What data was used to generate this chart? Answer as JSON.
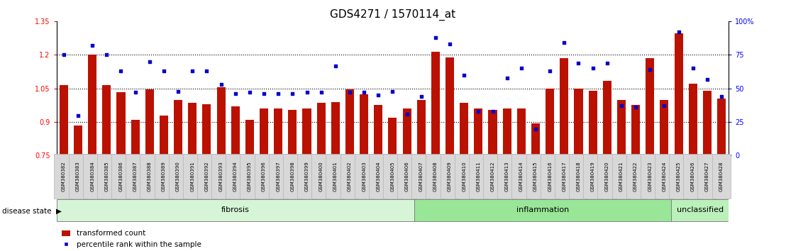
{
  "title": "GDS4271 / 1570114_at",
  "samples": [
    "GSM380382",
    "GSM380383",
    "GSM380384",
    "GSM380385",
    "GSM380386",
    "GSM380387",
    "GSM380388",
    "GSM380389",
    "GSM380390",
    "GSM380391",
    "GSM380392",
    "GSM380393",
    "GSM380394",
    "GSM380395",
    "GSM380396",
    "GSM380397",
    "GSM380398",
    "GSM380399",
    "GSM380400",
    "GSM380401",
    "GSM380402",
    "GSM380403",
    "GSM380404",
    "GSM380405",
    "GSM380406",
    "GSM380407",
    "GSM380408",
    "GSM380409",
    "GSM380410",
    "GSM380411",
    "GSM380412",
    "GSM380413",
    "GSM380414",
    "GSM380415",
    "GSM380416",
    "GSM380417",
    "GSM380418",
    "GSM380419",
    "GSM380420",
    "GSM380421",
    "GSM380422",
    "GSM380423",
    "GSM380424",
    "GSM380425",
    "GSM380426",
    "GSM380427",
    "GSM380428"
  ],
  "bar_values": [
    1.065,
    0.885,
    1.2,
    1.065,
    1.035,
    0.91,
    1.045,
    0.93,
    1.0,
    0.985,
    0.98,
    1.055,
    0.97,
    0.91,
    0.96,
    0.96,
    0.955,
    0.96,
    0.985,
    0.99,
    1.045,
    1.025,
    0.975,
    0.92,
    0.96,
    1.0,
    1.215,
    1.19,
    0.985,
    0.96,
    0.955,
    0.96,
    0.96,
    0.895,
    1.05,
    1.185,
    1.05,
    1.04,
    1.085,
    1.0,
    0.975,
    1.185,
    1.0,
    1.295,
    1.07,
    1.04,
    1.005
  ],
  "percentile_values": [
    75,
    30,
    82,
    75,
    63,
    47,
    70,
    63,
    48,
    63,
    63,
    53,
    46,
    47,
    46,
    46,
    46,
    47,
    47,
    67,
    47,
    47,
    45,
    48,
    31,
    44,
    88,
    83,
    60,
    33,
    33,
    58,
    65,
    20,
    63,
    84,
    69,
    65,
    69,
    37,
    36,
    64,
    37,
    92,
    65,
    57,
    44
  ],
  "groups": [
    {
      "label": "fibrosis",
      "start": 0,
      "end": 24,
      "color": "#d6f5d6"
    },
    {
      "label": "inflammation",
      "start": 25,
      "end": 42,
      "color": "#99e699"
    },
    {
      "label": "unclassified",
      "start": 43,
      "end": 46,
      "color": "#bbf0bb"
    }
  ],
  "ylim_left": [
    0.75,
    1.35
  ],
  "ylim_right": [
    0,
    100
  ],
  "yticks_left": [
    0.75,
    0.9,
    1.05,
    1.2,
    1.35
  ],
  "ytick_labels_left": [
    "0.75",
    "0.9",
    "1.05",
    "1.2",
    "1.35"
  ],
  "yticks_right": [
    0,
    25,
    50,
    75,
    100
  ],
  "ytick_labels_right": [
    "0",
    "25",
    "50",
    "75",
    "100%"
  ],
  "hlines": [
    0.9,
    1.05,
    1.2
  ],
  "bar_color": "#bb1100",
  "scatter_color": "#0000cc",
  "background_color": "#ffffff",
  "title_fontsize": 11,
  "tick_fontsize": 7,
  "xtick_fontsize": 5.0
}
